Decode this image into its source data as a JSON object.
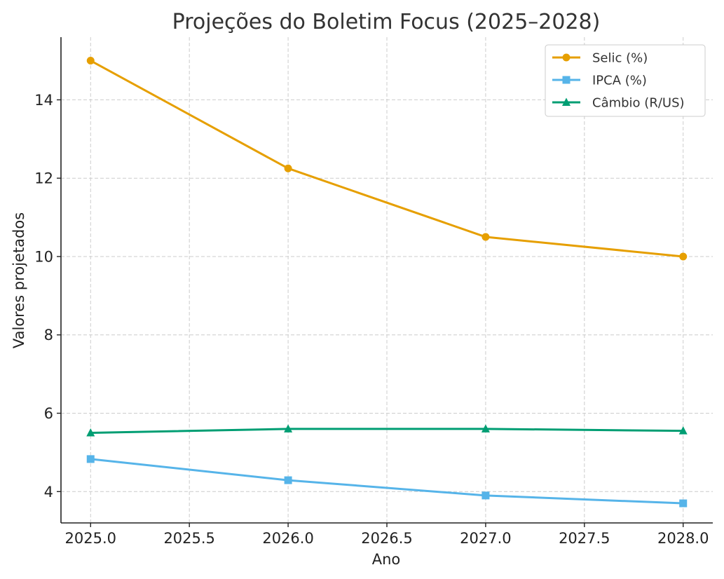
{
  "chart_data": {
    "type": "line",
    "title": "Projeções do Boletim Focus (2025–2028)",
    "xlabel": "Ano",
    "ylabel": "Valores projetados",
    "x": [
      2025,
      2026,
      2027,
      2028
    ],
    "xlim": [
      2024.85,
      2028.15
    ],
    "ylim": [
      3.2,
      15.6
    ],
    "xticks": [
      2025.0,
      2025.5,
      2026.0,
      2026.5,
      2027.0,
      2027.5,
      2028.0
    ],
    "xtick_labels": [
      "2025.0",
      "2025.5",
      "2026.0",
      "2026.5",
      "2027.0",
      "2027.5",
      "2028.0"
    ],
    "yticks": [
      4,
      6,
      8,
      10,
      12,
      14
    ],
    "ytick_labels": [
      "4",
      "6",
      "8",
      "10",
      "12",
      "14"
    ],
    "grid": true,
    "legend_position": "top-right",
    "series": [
      {
        "name": "Selic (%)",
        "values": [
          15.0,
          12.25,
          10.5,
          10.0
        ],
        "color": "#E69F00",
        "marker": "circle"
      },
      {
        "name": "IPCA (%)",
        "values": [
          4.83,
          4.29,
          3.9,
          3.7
        ],
        "color": "#56B4E9",
        "marker": "square"
      },
      {
        "name": "Câmbio (R/US)",
        "values": [
          5.5,
          5.6,
          5.6,
          5.55
        ],
        "color": "#009E73",
        "marker": "triangle"
      }
    ]
  }
}
